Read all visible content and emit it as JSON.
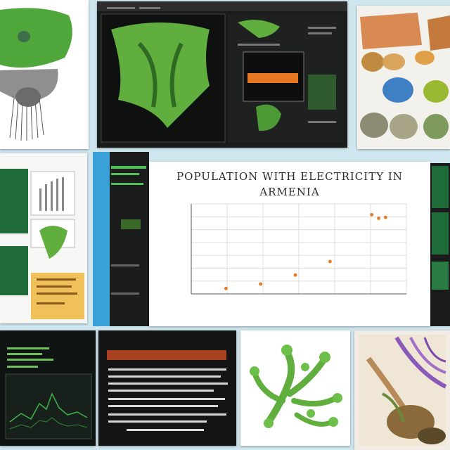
{
  "chart_data": {
    "type": "scatter",
    "title": "POPULATION WITH ELECTRICITY IN ARMENIA",
    "xlabel": "",
    "ylabel": "",
    "x_ticks": [
      "",
      "",
      "",
      "",
      "",
      "",
      ""
    ],
    "y_ticks": [
      "",
      "",
      "",
      "",
      "",
      "",
      "",
      ""
    ],
    "grid": true,
    "color": "#e87722",
    "points": [
      {
        "x": 1,
        "y": 0.3
      },
      {
        "x": 2,
        "y": 0.55
      },
      {
        "x": 3,
        "y": 1.05
      },
      {
        "x": 4,
        "y": 1.8
      },
      {
        "x": 5.2,
        "y": 4.4
      },
      {
        "x": 5.4,
        "y": 4.2
      },
      {
        "x": 5.6,
        "y": 4.25
      }
    ],
    "xlim": [
      0,
      6.2
    ],
    "ylim": [
      0,
      5
    ]
  },
  "colors": {
    "leaf_green": "#5fae3e",
    "panel_dark": "#1a1c1b",
    "accent_orange": "#e87722",
    "background": "#cfe6ee"
  },
  "panels": {
    "bottom_dark_title": ""
  }
}
